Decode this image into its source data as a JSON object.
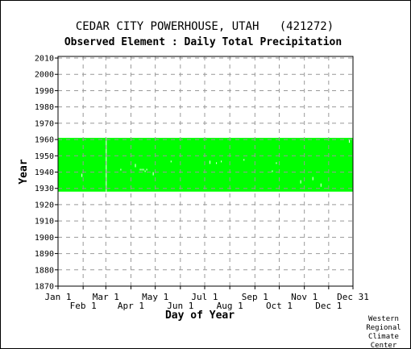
{
  "header": {
    "title": "CEDAR CITY POWERHOUSE, UTAH   (421272)",
    "subtitle": "Observed Element : Daily Total Precipitation"
  },
  "credit": [
    "Western",
    "Regional",
    "Climate",
    "Center"
  ],
  "colors": {
    "data": "#00ff00",
    "grid": "#999999",
    "axis": "#000000"
  },
  "chart_data": {
    "type": "heatmap",
    "title": "Observed Element : Daily Total Precipitation",
    "xlabel": "Day of Year",
    "ylabel": "Year",
    "xlim": [
      1,
      365
    ],
    "ylim": [
      1870,
      2011
    ],
    "x_ticks": [
      {
        "label": "Jan 1",
        "day": 1,
        "row": 0
      },
      {
        "label": "Feb 1",
        "day": 32,
        "row": 1
      },
      {
        "label": "Mar 1",
        "day": 60,
        "row": 0
      },
      {
        "label": "Apr 1",
        "day": 91,
        "row": 1
      },
      {
        "label": "May 1",
        "day": 121,
        "row": 0
      },
      {
        "label": "Jun 1",
        "day": 152,
        "row": 1
      },
      {
        "label": "Jul 1",
        "day": 182,
        "row": 0
      },
      {
        "label": "Aug 1",
        "day": 213,
        "row": 1
      },
      {
        "label": "Sep 1",
        "day": 244,
        "row": 0
      },
      {
        "label": "Oct 1",
        "day": 274,
        "row": 1
      },
      {
        "label": "Nov 1",
        "day": 305,
        "row": 0
      },
      {
        "label": "Dec 1",
        "day": 335,
        "row": 1
      },
      {
        "label": "Dec 31",
        "day": 365,
        "row": 0
      }
    ],
    "y_ticks": [
      1870,
      1880,
      1890,
      1900,
      1910,
      1920,
      1930,
      1940,
      1950,
      1960,
      1970,
      1980,
      1990,
      2000,
      2010
    ],
    "grid": true,
    "series": [
      {
        "year_start": 1928,
        "year_end": 1960,
        "day_start": 1,
        "day_end": 365,
        "status": "observed"
      }
    ],
    "missing_days": [
      {
        "day": 60,
        "year_from": 1928,
        "year_to": 1960
      },
      {
        "day": 30,
        "year_from": 1937,
        "year_to": 1938
      },
      {
        "day": 78,
        "year_from": 1941,
        "year_to": 1941
      },
      {
        "day": 96,
        "year_from": 1943,
        "year_to": 1944
      },
      {
        "day": 102,
        "year_from": 1941,
        "year_to": 1941
      },
      {
        "day": 104,
        "year_from": 1941,
        "year_to": 1941
      },
      {
        "day": 106,
        "year_from": 1941,
        "year_to": 1941
      },
      {
        "day": 108,
        "year_from": 1940,
        "year_to": 1940
      },
      {
        "day": 110,
        "year_from": 1941,
        "year_to": 1941
      },
      {
        "day": 118,
        "year_from": 1938,
        "year_to": 1939
      },
      {
        "day": 140,
        "year_from": 1946,
        "year_to": 1946
      },
      {
        "day": 188,
        "year_from": 1945,
        "year_to": 1946
      },
      {
        "day": 196,
        "year_from": 1945,
        "year_to": 1945
      },
      {
        "day": 202,
        "year_from": 1946,
        "year_to": 1946
      },
      {
        "day": 230,
        "year_from": 1947,
        "year_to": 1947
      },
      {
        "day": 265,
        "year_from": 1940,
        "year_to": 1940
      },
      {
        "day": 270,
        "year_from": 1945,
        "year_to": 1945
      },
      {
        "day": 300,
        "year_from": 1933,
        "year_to": 1934
      },
      {
        "day": 315,
        "year_from": 1935,
        "year_to": 1936
      },
      {
        "day": 325,
        "year_from": 1931,
        "year_to": 1932
      },
      {
        "day": 360,
        "year_from": 1958,
        "year_to": 1959
      }
    ]
  }
}
